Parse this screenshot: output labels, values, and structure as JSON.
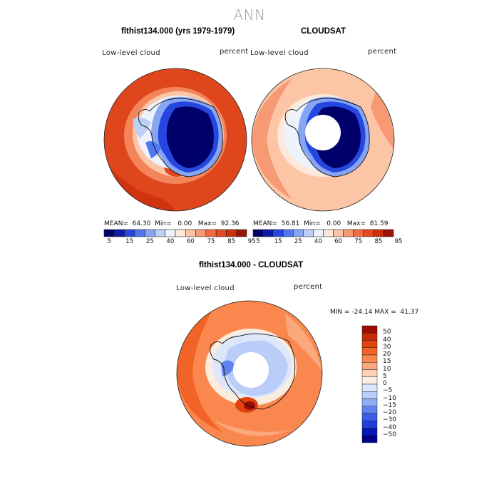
{
  "title": "ANN",
  "panels": [
    {
      "heading": "flthist134.000 (yrs 1979-1979)",
      "field": "Low-level cloud",
      "units": "percent",
      "stats": {
        "mean_label": "MEAN=",
        "mean": "64.30",
        "min_label": "Min=",
        "min": "0.00",
        "max_label": "Max=",
        "max": "92.36"
      },
      "missing_pole": false
    },
    {
      "heading": "CLOUDSAT",
      "field": "Low-level cloud",
      "units": "percent",
      "stats": {
        "mean_label": "MEAN=",
        "mean": "56.81",
        "min_label": "Min=",
        "min": "0.00",
        "max_label": "Max=",
        "max": "81.59"
      },
      "missing_pole": true
    }
  ],
  "top_colorbar": {
    "colors": [
      "#00006a",
      "#0e1aa8",
      "#2647df",
      "#4f77ef",
      "#86a6f4",
      "#bcd0f7",
      "#eef2fb",
      "#fde8d9",
      "#fbc4a7",
      "#f79a74",
      "#f26b45",
      "#e4491f",
      "#cc2f0c",
      "#9a1305"
    ],
    "tick_labels": [
      "5",
      "15",
      "25",
      "40",
      "60",
      "75",
      "85",
      "95"
    ]
  },
  "difference": {
    "heading": "flthist134.000 - CLOUDSAT",
    "field": "Low-level cloud",
    "units": "percent",
    "range_text": "MIN = -24.14 MAX =  41.37",
    "missing_pole": true
  },
  "diff_colorbar": {
    "colors": [
      "#9a0d00",
      "#c92a06",
      "#e0430f",
      "#f16326",
      "#f9874e",
      "#fca87e",
      "#fdd0b5",
      "#fbece0",
      "#dde7fb",
      "#b9cdf8",
      "#8dadf4",
      "#5f84ef",
      "#3a5ee6",
      "#1f3fda",
      "#0717b6",
      "#00008a"
    ],
    "tick_labels": [
      "50",
      "40",
      "30",
      "20",
      "15",
      "10",
      "5",
      "0",
      "−5",
      "−10",
      "−15",
      "−20",
      "−30",
      "−40",
      "−50"
    ]
  }
}
